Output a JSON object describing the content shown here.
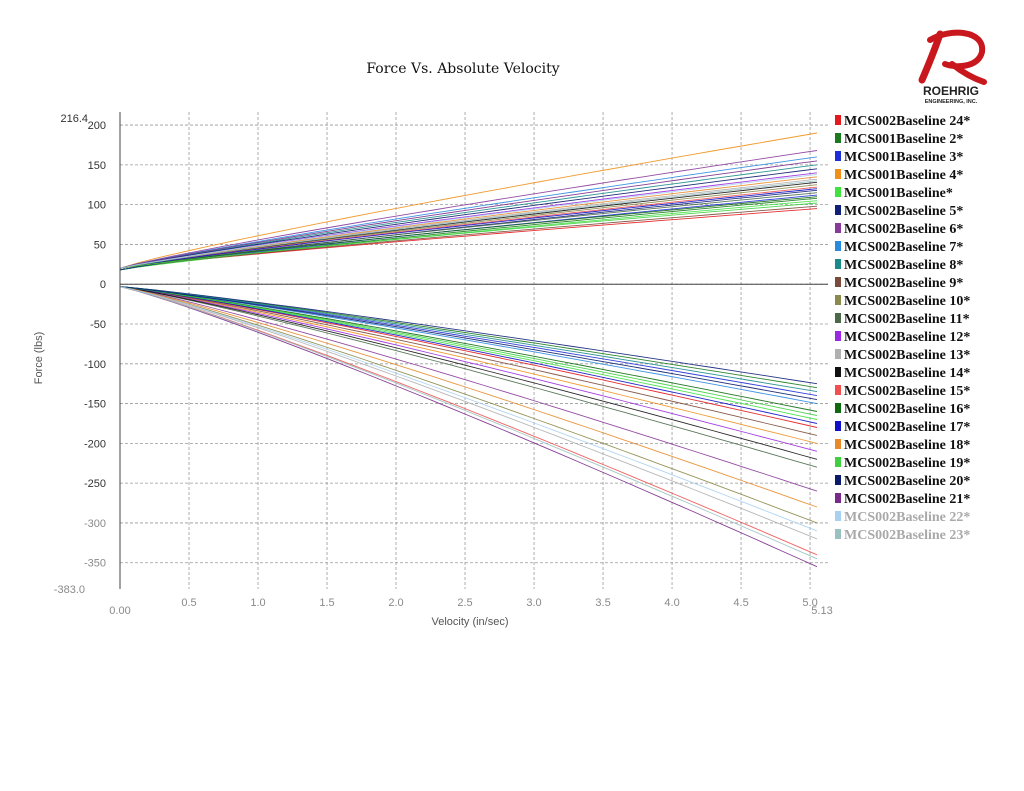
{
  "chart_data": {
    "type": "line",
    "title": "Force Vs. Absolute Velocity",
    "xlabel": "Velocity (in/sec)",
    "ylabel": "Force (lbs)",
    "xlim": [
      0.0,
      5.13
    ],
    "ylim": [
      -383.0,
      216.4
    ],
    "xlim_labels": {
      "min": "0.00",
      "max": "5.13"
    },
    "ylim_labels": {
      "min": "-383.0",
      "max": "216.4"
    },
    "x_ticks": [
      "0.5",
      "1.0",
      "1.5",
      "2.0",
      "2.5",
      "3.0",
      "3.5",
      "4.0",
      "4.5",
      "5.0"
    ],
    "x_tick_values": [
      0.5,
      1.0,
      1.5,
      2.0,
      2.5,
      3.0,
      3.5,
      4.0,
      4.5,
      5.0
    ],
    "y_ticks": [
      "200",
      "150",
      "100",
      "50",
      "0",
      "-50",
      "-100",
      "-150",
      "-200",
      "-250",
      "-300",
      "-350"
    ],
    "y_tick_values": [
      200,
      150,
      100,
      50,
      0,
      -50,
      -100,
      -150,
      -200,
      -250,
      -300,
      -350
    ],
    "grid": true,
    "legend_position": "right",
    "series": [
      {
        "name": "MCS002Baseline 24*",
        "color": "#e31a1c",
        "rebound": [
          20,
          95
        ],
        "compression": [
          -3,
          -180
        ]
      },
      {
        "name": "MCS001Baseline 2*",
        "color": "#1b7a1b",
        "rebound": [
          18,
          108
        ],
        "compression": [
          -3,
          -130
        ]
      },
      {
        "name": "MCS001Baseline 3*",
        "color": "#1f2fd6",
        "rebound": [
          18,
          112
        ],
        "compression": [
          -3,
          -140
        ]
      },
      {
        "name": "MCS001Baseline 4*",
        "color": "#f0901a",
        "rebound": [
          20,
          190
        ],
        "compression": [
          -3,
          -200
        ]
      },
      {
        "name": "MCS001Baseline*",
        "color": "#3fe23f",
        "rebound": [
          18,
          105
        ],
        "compression": [
          -3,
          -170
        ]
      },
      {
        "name": "MCS002Baseline 5*",
        "color": "#10207a",
        "rebound": [
          18,
          118
        ],
        "compression": [
          -3,
          -125
        ]
      },
      {
        "name": "MCS002Baseline 6*",
        "color": "#8a3a9a",
        "rebound": [
          20,
          168
        ],
        "compression": [
          -3,
          -260
        ]
      },
      {
        "name": "MCS002Baseline 7*",
        "color": "#2a8ae0",
        "rebound": [
          20,
          160
        ],
        "compression": [
          -3,
          -150
        ]
      },
      {
        "name": "MCS002Baseline 8*",
        "color": "#1a8a8a",
        "rebound": [
          20,
          150
        ],
        "compression": [
          -3,
          -135
        ]
      },
      {
        "name": "MCS002Baseline 9*",
        "color": "#7a4a3a",
        "rebound": [
          20,
          98
        ],
        "compression": [
          -3,
          -190
        ]
      },
      {
        "name": "MCS002Baseline 10*",
        "color": "#8a8a4a",
        "rebound": [
          20,
          125
        ],
        "compression": [
          -3,
          -300
        ]
      },
      {
        "name": "MCS002Baseline 11*",
        "color": "#4a6a4a",
        "rebound": [
          20,
          115
        ],
        "compression": [
          -3,
          -230
        ]
      },
      {
        "name": "MCS002Baseline 12*",
        "color": "#9a2ae2",
        "rebound": [
          20,
          140
        ],
        "compression": [
          -3,
          -210
        ]
      },
      {
        "name": "MCS002Baseline 13*",
        "color": "#b0b0b0",
        "rebound": [
          20,
          132
        ],
        "compression": [
          -3,
          -320
        ]
      },
      {
        "name": "MCS002Baseline 14*",
        "color": "#111111",
        "rebound": [
          20,
          128
        ],
        "compression": [
          -3,
          -220
        ]
      },
      {
        "name": "MCS002Baseline 15*",
        "color": "#f05050",
        "rebound": [
          20,
          122
        ],
        "compression": [
          -3,
          -340
        ]
      },
      {
        "name": "MCS002Baseline 16*",
        "color": "#0f6a0f",
        "rebound": [
          20,
          110
        ],
        "compression": [
          -3,
          -160
        ]
      },
      {
        "name": "MCS002Baseline 17*",
        "color": "#1010c8",
        "rebound": [
          20,
          120
        ],
        "compression": [
          -3,
          -175
        ]
      },
      {
        "name": "MCS002Baseline 18*",
        "color": "#e88a2a",
        "rebound": [
          20,
          135
        ],
        "compression": [
          -3,
          -280
        ]
      },
      {
        "name": "MCS002Baseline 19*",
        "color": "#3fd03f",
        "rebound": [
          20,
          102
        ],
        "compression": [
          -3,
          -165
        ]
      },
      {
        "name": "MCS002Baseline 20*",
        "color": "#0a1a6a",
        "rebound": [
          20,
          145
        ],
        "compression": [
          -3,
          -145
        ]
      },
      {
        "name": "MCS002Baseline 21*",
        "color": "#7a2a8a",
        "rebound": [
          20,
          155
        ],
        "compression": [
          -3,
          -355
        ]
      },
      {
        "name": "MCS002Baseline 22*",
        "color": "#a8d0f0",
        "rebound": [
          20,
          138
        ],
        "compression": [
          -3,
          -310
        ]
      },
      {
        "name": "MCS002Baseline 23*",
        "color": "#9ac0c0",
        "rebound": [
          20,
          130
        ],
        "compression": [
          -3,
          -345
        ]
      }
    ],
    "faded_series": [
      "MCS002Baseline 22*",
      "MCS002Baseline 23*"
    ]
  },
  "logo": {
    "line1": "ROEHRIG",
    "line2": "ENGINEERING, INC.",
    "accent": "#c8181e"
  }
}
